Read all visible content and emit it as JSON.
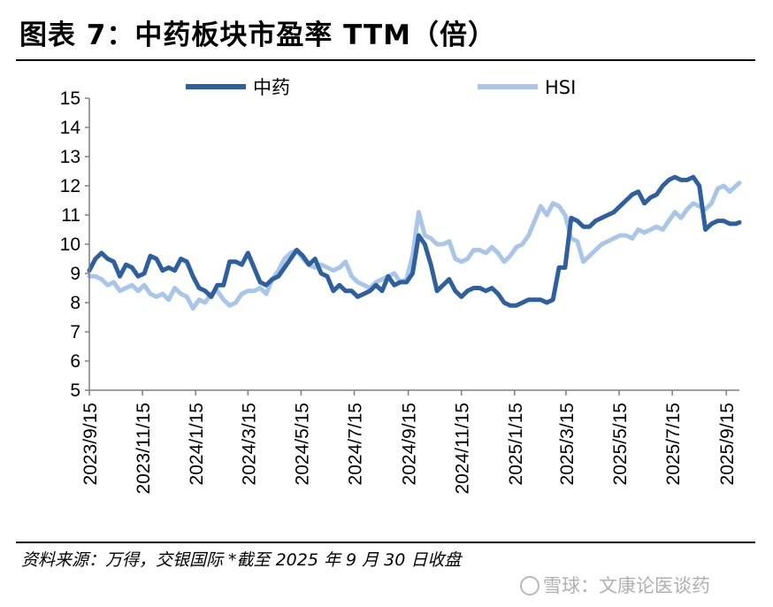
{
  "header": {
    "title": "图表 7：中药板块市盈率 TTM（倍）"
  },
  "footer": {
    "source": "资料来源：万得，交银国际   *截至 2025 年 9 月 30 日收盘",
    "watermark": "雪球：文康论医谈药"
  },
  "chart_data": {
    "type": "line",
    "title": "图表 7：中药板块市盈率 TTM（倍）",
    "xlabel": "",
    "ylabel": "",
    "ylim": [
      5,
      15
    ],
    "yticks": [
      "5",
      "6",
      "7",
      "8",
      "9",
      "10",
      "11",
      "12",
      "13",
      "14",
      "15"
    ],
    "xticks": [
      "2023/9/15",
      "2023/11/15",
      "2024/1/15",
      "2024/3/15",
      "2024/5/15",
      "2024/7/15",
      "2024/9/15",
      "2024/11/15",
      "2025/1/15",
      "2025/3/15",
      "2025/5/15",
      "2025/7/15",
      "2025/9/15"
    ],
    "x_range": [
      "2023/9/15",
      "2025/9/30"
    ],
    "grid": false,
    "legend": "top",
    "series": [
      {
        "name": "中药",
        "color": "#2e5f9e",
        "points": [
          [
            "2023/9/15",
            9.1
          ],
          [
            "2023/9/22",
            9.5
          ],
          [
            "2023/9/29",
            9.7
          ],
          [
            "2023/10/6",
            9.5
          ],
          [
            "2023/10/13",
            9.4
          ],
          [
            "2023/10/20",
            8.9
          ],
          [
            "2023/10/27",
            9.3
          ],
          [
            "2023/11/3",
            9.2
          ],
          [
            "2023/11/10",
            8.9
          ],
          [
            "2023/11/17",
            9.0
          ],
          [
            "2023/11/24",
            9.6
          ],
          [
            "2023/12/1",
            9.5
          ],
          [
            "2023/12/8",
            9.1
          ],
          [
            "2023/12/15",
            9.2
          ],
          [
            "2023/12/22",
            9.1
          ],
          [
            "2023/12/29",
            9.5
          ],
          [
            "2024/1/5",
            9.4
          ],
          [
            "2024/1/12",
            8.9
          ],
          [
            "2024/1/19",
            8.5
          ],
          [
            "2024/1/26",
            8.4
          ],
          [
            "2024/2/2",
            8.2
          ],
          [
            "2024/2/9",
            8.6
          ],
          [
            "2024/2/16",
            8.6
          ],
          [
            "2024/2/23",
            9.4
          ],
          [
            "2024/3/1",
            9.4
          ],
          [
            "2024/3/8",
            9.3
          ],
          [
            "2024/3/15",
            9.7
          ],
          [
            "2024/3/22",
            9.2
          ],
          [
            "2024/3/29",
            8.7
          ],
          [
            "2024/4/5",
            8.6
          ],
          [
            "2024/4/12",
            8.8
          ],
          [
            "2024/4/19",
            8.9
          ],
          [
            "2024/4/26",
            9.2
          ],
          [
            "2024/5/3",
            9.5
          ],
          [
            "2024/5/10",
            9.8
          ],
          [
            "2024/5/17",
            9.6
          ],
          [
            "2024/5/24",
            9.3
          ],
          [
            "2024/5/31",
            9.5
          ],
          [
            "2024/6/7",
            9.0
          ],
          [
            "2024/6/14",
            8.9
          ],
          [
            "2024/6/21",
            8.4
          ],
          [
            "2024/6/28",
            8.6
          ],
          [
            "2024/7/5",
            8.4
          ],
          [
            "2024/7/12",
            8.4
          ],
          [
            "2024/7/19",
            8.2
          ],
          [
            "2024/7/26",
            8.3
          ],
          [
            "2024/8/2",
            8.4
          ],
          [
            "2024/8/9",
            8.6
          ],
          [
            "2024/8/16",
            8.4
          ],
          [
            "2024/8/23",
            8.9
          ],
          [
            "2024/8/30",
            8.6
          ],
          [
            "2024/9/6",
            8.7
          ],
          [
            "2024/9/13",
            8.7
          ],
          [
            "2024/9/20",
            9.0
          ],
          [
            "2024/9/27",
            10.3
          ],
          [
            "2024/10/4",
            10.0
          ],
          [
            "2024/10/11",
            9.3
          ],
          [
            "2024/10/18",
            8.4
          ],
          [
            "2024/10/25",
            8.6
          ],
          [
            "2024/11/1",
            8.8
          ],
          [
            "2024/11/8",
            8.4
          ],
          [
            "2024/11/15",
            8.2
          ],
          [
            "2024/11/22",
            8.4
          ],
          [
            "2024/11/29",
            8.5
          ],
          [
            "2024/12/6",
            8.5
          ],
          [
            "2024/12/13",
            8.4
          ],
          [
            "2024/12/20",
            8.5
          ],
          [
            "2024/12/27",
            8.3
          ],
          [
            "2025/1/3",
            8.0
          ],
          [
            "2025/1/10",
            7.9
          ],
          [
            "2025/1/17",
            7.9
          ],
          [
            "2025/1/24",
            8.0
          ],
          [
            "2025/1/31",
            8.1
          ],
          [
            "2025/2/7",
            8.1
          ],
          [
            "2025/2/14",
            8.1
          ],
          [
            "2025/2/21",
            8.0
          ],
          [
            "2025/2/28",
            8.1
          ],
          [
            "2025/3/7",
            9.2
          ],
          [
            "2025/3/14",
            9.2
          ],
          [
            "2025/3/21",
            10.9
          ],
          [
            "2025/3/28",
            10.8
          ],
          [
            "2025/4/4",
            10.6
          ],
          [
            "2025/4/11",
            10.6
          ],
          [
            "2025/4/18",
            10.8
          ],
          [
            "2025/4/25",
            10.9
          ],
          [
            "2025/5/2",
            11.0
          ],
          [
            "2025/5/9",
            11.1
          ],
          [
            "2025/5/16",
            11.3
          ],
          [
            "2025/5/23",
            11.5
          ],
          [
            "2025/5/30",
            11.7
          ],
          [
            "2025/6/6",
            11.8
          ],
          [
            "2025/6/13",
            11.4
          ],
          [
            "2025/6/20",
            11.6
          ],
          [
            "2025/6/27",
            11.7
          ],
          [
            "2025/7/4",
            12.0
          ],
          [
            "2025/7/11",
            12.2
          ],
          [
            "2025/7/18",
            12.3
          ],
          [
            "2025/7/25",
            12.2
          ],
          [
            "2025/8/1",
            12.2
          ],
          [
            "2025/8/8",
            12.3
          ],
          [
            "2025/8/15",
            12.0
          ],
          [
            "2025/8/22",
            10.5
          ],
          [
            "2025/8/29",
            10.7
          ],
          [
            "2025/9/5",
            10.8
          ],
          [
            "2025/9/12",
            10.8
          ],
          [
            "2025/9/19",
            10.7
          ],
          [
            "2025/9/26",
            10.7
          ],
          [
            "2025/9/30",
            10.75
          ]
        ]
      },
      {
        "name": "HSI",
        "color": "#a9c6e8",
        "points": [
          [
            "2023/9/15",
            8.9
          ],
          [
            "2023/9/22",
            8.9
          ],
          [
            "2023/9/29",
            8.8
          ],
          [
            "2023/10/6",
            8.6
          ],
          [
            "2023/10/13",
            8.7
          ],
          [
            "2023/10/20",
            8.4
          ],
          [
            "2023/10/27",
            8.5
          ],
          [
            "2023/11/3",
            8.6
          ],
          [
            "2023/11/10",
            8.4
          ],
          [
            "2023/11/17",
            8.6
          ],
          [
            "2023/11/24",
            8.3
          ],
          [
            "2023/12/1",
            8.2
          ],
          [
            "2023/12/8",
            8.3
          ],
          [
            "2023/12/15",
            8.1
          ],
          [
            "2023/12/22",
            8.5
          ],
          [
            "2023/12/29",
            8.3
          ],
          [
            "2024/1/5",
            8.2
          ],
          [
            "2024/1/12",
            7.8
          ],
          [
            "2024/1/19",
            8.1
          ],
          [
            "2024/1/26",
            8.0
          ],
          [
            "2024/2/2",
            8.3
          ],
          [
            "2024/2/9",
            8.4
          ],
          [
            "2024/2/16",
            8.1
          ],
          [
            "2024/2/23",
            7.9
          ],
          [
            "2024/3/1",
            8.0
          ],
          [
            "2024/3/8",
            8.3
          ],
          [
            "2024/3/15",
            8.4
          ],
          [
            "2024/3/22",
            8.4
          ],
          [
            "2024/3/29",
            8.5
          ],
          [
            "2024/4/5",
            8.3
          ],
          [
            "2024/4/12",
            8.8
          ],
          [
            "2024/4/19",
            9.1
          ],
          [
            "2024/4/26",
            9.5
          ],
          [
            "2024/5/3",
            9.7
          ],
          [
            "2024/5/10",
            9.8
          ],
          [
            "2024/5/17",
            9.5
          ],
          [
            "2024/5/24",
            9.3
          ],
          [
            "2024/5/31",
            9.2
          ],
          [
            "2024/6/7",
            9.3
          ],
          [
            "2024/6/14",
            9.2
          ],
          [
            "2024/6/21",
            9.1
          ],
          [
            "2024/6/28",
            9.2
          ],
          [
            "2024/7/5",
            9.4
          ],
          [
            "2024/7/12",
            8.9
          ],
          [
            "2024/7/19",
            8.7
          ],
          [
            "2024/7/26",
            8.6
          ],
          [
            "2024/8/2",
            8.5
          ],
          [
            "2024/8/9",
            8.7
          ],
          [
            "2024/8/16",
            8.8
          ],
          [
            "2024/8/23",
            8.9
          ],
          [
            "2024/8/30",
            9.0
          ],
          [
            "2024/9/6",
            8.7
          ],
          [
            "2024/9/13",
            8.8
          ],
          [
            "2024/9/20",
            9.6
          ],
          [
            "2024/9/27",
            11.1
          ],
          [
            "2024/10/4",
            10.3
          ],
          [
            "2024/10/11",
            10.2
          ],
          [
            "2024/10/18",
            10.0
          ],
          [
            "2024/10/25",
            10.0
          ],
          [
            "2024/11/1",
            10.1
          ],
          [
            "2024/11/8",
            9.5
          ],
          [
            "2024/11/15",
            9.4
          ],
          [
            "2024/11/22",
            9.5
          ],
          [
            "2024/11/29",
            9.8
          ],
          [
            "2024/12/6",
            9.8
          ],
          [
            "2024/12/13",
            9.7
          ],
          [
            "2024/12/20",
            9.9
          ],
          [
            "2024/12/27",
            9.7
          ],
          [
            "2025/1/3",
            9.4
          ],
          [
            "2025/1/10",
            9.6
          ],
          [
            "2025/1/17",
            9.9
          ],
          [
            "2025/1/24",
            10.0
          ],
          [
            "2025/1/31",
            10.3
          ],
          [
            "2025/2/7",
            10.8
          ],
          [
            "2025/2/14",
            11.3
          ],
          [
            "2025/2/21",
            11.0
          ],
          [
            "2025/2/28",
            11.4
          ],
          [
            "2025/3/7",
            11.3
          ],
          [
            "2025/3/14",
            11.0
          ],
          [
            "2025/3/21",
            10.2
          ],
          [
            "2025/3/28",
            10.1
          ],
          [
            "2025/4/4",
            9.4
          ],
          [
            "2025/4/11",
            9.6
          ],
          [
            "2025/4/18",
            9.8
          ],
          [
            "2025/4/25",
            10.0
          ],
          [
            "2025/5/2",
            10.1
          ],
          [
            "2025/5/9",
            10.2
          ],
          [
            "2025/5/16",
            10.3
          ],
          [
            "2025/5/23",
            10.3
          ],
          [
            "2025/5/30",
            10.2
          ],
          [
            "2025/6/6",
            10.5
          ],
          [
            "2025/6/13",
            10.4
          ],
          [
            "2025/6/20",
            10.5
          ],
          [
            "2025/6/27",
            10.6
          ],
          [
            "2025/7/4",
            10.5
          ],
          [
            "2025/7/11",
            10.8
          ],
          [
            "2025/7/18",
            11.1
          ],
          [
            "2025/7/25",
            10.9
          ],
          [
            "2025/8/1",
            11.2
          ],
          [
            "2025/8/8",
            11.4
          ],
          [
            "2025/8/15",
            11.3
          ],
          [
            "2025/8/22",
            11.2
          ],
          [
            "2025/8/29",
            11.4
          ],
          [
            "2025/9/5",
            11.9
          ],
          [
            "2025/9/12",
            12.0
          ],
          [
            "2025/9/19",
            11.8
          ],
          [
            "2025/9/26",
            12.0
          ],
          [
            "2025/9/30",
            12.1
          ]
        ]
      }
    ]
  }
}
